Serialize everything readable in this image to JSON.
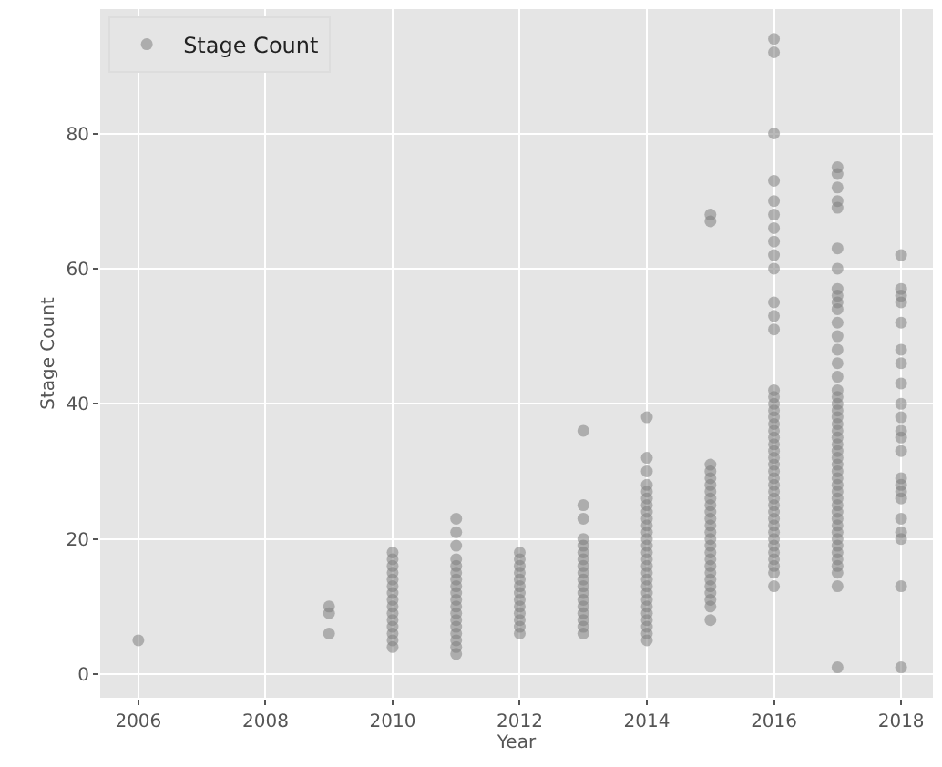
{
  "chart_data": {
    "type": "scatter",
    "xlabel": "Year",
    "ylabel": "Stage Count",
    "xlim": [
      2005.4,
      2018.5
    ],
    "xticks": [
      2006,
      2008,
      2010,
      2012,
      2014,
      2016,
      2018
    ],
    "ylim": [
      -3.5,
      98.4
    ],
    "yticks": [
      0,
      20,
      40,
      60,
      80
    ],
    "grid": true,
    "legend": "top left",
    "marker": "circle",
    "series": [
      {
        "name": "Stage Count",
        "color": "#808080",
        "x": [
          2006,
          2009,
          2009,
          2009,
          2010,
          2010,
          2010,
          2010,
          2010,
          2010,
          2010,
          2010,
          2010,
          2010,
          2010,
          2010,
          2010,
          2010,
          2010,
          2011,
          2011,
          2011,
          2011,
          2011,
          2011,
          2011,
          2011,
          2011,
          2011,
          2011,
          2011,
          2011,
          2011,
          2011,
          2011,
          2011,
          2011,
          2012,
          2012,
          2012,
          2012,
          2012,
          2012,
          2012,
          2012,
          2012,
          2012,
          2012,
          2012,
          2012,
          2013,
          2013,
          2013,
          2013,
          2013,
          2013,
          2013,
          2013,
          2013,
          2013,
          2013,
          2013,
          2013,
          2013,
          2013,
          2013,
          2013,
          2013,
          2014,
          2014,
          2014,
          2014,
          2014,
          2014,
          2014,
          2014,
          2014,
          2014,
          2014,
          2014,
          2014,
          2014,
          2014,
          2014,
          2014,
          2014,
          2014,
          2014,
          2014,
          2014,
          2014,
          2014,
          2014,
          2014,
          2014,
          2015,
          2015,
          2015,
          2015,
          2015,
          2015,
          2015,
          2015,
          2015,
          2015,
          2015,
          2015,
          2015,
          2015,
          2015,
          2015,
          2015,
          2015,
          2015,
          2015,
          2015,
          2015,
          2015,
          2015,
          2015,
          2016,
          2016,
          2016,
          2016,
          2016,
          2016,
          2016,
          2016,
          2016,
          2016,
          2016,
          2016,
          2016,
          2016,
          2016,
          2016,
          2016,
          2016,
          2016,
          2016,
          2016,
          2016,
          2016,
          2016,
          2016,
          2016,
          2016,
          2016,
          2016,
          2016,
          2016,
          2016,
          2016,
          2016,
          2016,
          2016,
          2016,
          2016,
          2016,
          2016,
          2016,
          2016,
          2017,
          2017,
          2017,
          2017,
          2017,
          2017,
          2017,
          2017,
          2017,
          2017,
          2017,
          2017,
          2017,
          2017,
          2017,
          2017,
          2017,
          2017,
          2017,
          2017,
          2017,
          2017,
          2017,
          2017,
          2017,
          2017,
          2017,
          2017,
          2017,
          2017,
          2017,
          2017,
          2017,
          2017,
          2017,
          2017,
          2017,
          2017,
          2017,
          2017,
          2017,
          2017,
          2017,
          2017,
          2017,
          2017,
          2018,
          2018,
          2018,
          2018,
          2018,
          2018,
          2018,
          2018,
          2018,
          2018,
          2018,
          2018,
          2018,
          2018,
          2018,
          2018,
          2018,
          2018,
          2018,
          2018,
          2018,
          2018
        ],
        "values": [
          5,
          6,
          9,
          10,
          4,
          5,
          6,
          7,
          8,
          9,
          10,
          11,
          12,
          13,
          14,
          15,
          16,
          17,
          18,
          3,
          4,
          5,
          6,
          7,
          8,
          9,
          10,
          11,
          12,
          13,
          14,
          15,
          16,
          17,
          19,
          21,
          23,
          6,
          7,
          8,
          9,
          10,
          11,
          12,
          13,
          14,
          15,
          16,
          17,
          18,
          6,
          7,
          8,
          9,
          10,
          11,
          12,
          13,
          14,
          15,
          16,
          17,
          18,
          19,
          20,
          23,
          25,
          36,
          5,
          6,
          7,
          8,
          9,
          10,
          11,
          12,
          13,
          14,
          15,
          16,
          17,
          18,
          19,
          20,
          21,
          22,
          23,
          24,
          25,
          26,
          27,
          28,
          30,
          32,
          38,
          8,
          10,
          11,
          12,
          13,
          14,
          15,
          16,
          17,
          18,
          19,
          20,
          21,
          22,
          23,
          24,
          25,
          26,
          27,
          28,
          29,
          30,
          31,
          67,
          68,
          13,
          15,
          16,
          17,
          18,
          19,
          20,
          21,
          22,
          23,
          24,
          25,
          26,
          27,
          28,
          29,
          30,
          31,
          32,
          33,
          34,
          35,
          36,
          37,
          38,
          39,
          40,
          41,
          42,
          51,
          53,
          55,
          60,
          62,
          64,
          66,
          68,
          70,
          73,
          80,
          92,
          94,
          1,
          13,
          15,
          16,
          17,
          18,
          19,
          20,
          21,
          22,
          23,
          24,
          25,
          26,
          27,
          28,
          29,
          30,
          31,
          32,
          33,
          34,
          35,
          36,
          37,
          38,
          39,
          40,
          41,
          42,
          44,
          46,
          48,
          50,
          52,
          54,
          55,
          56,
          57,
          60,
          63,
          69,
          70,
          72,
          74,
          75,
          1,
          13,
          20,
          21,
          23,
          26,
          27,
          28,
          29,
          33,
          35,
          36,
          38,
          40,
          43,
          46,
          48,
          52,
          55,
          56,
          57,
          62
        ]
      }
    ]
  }
}
